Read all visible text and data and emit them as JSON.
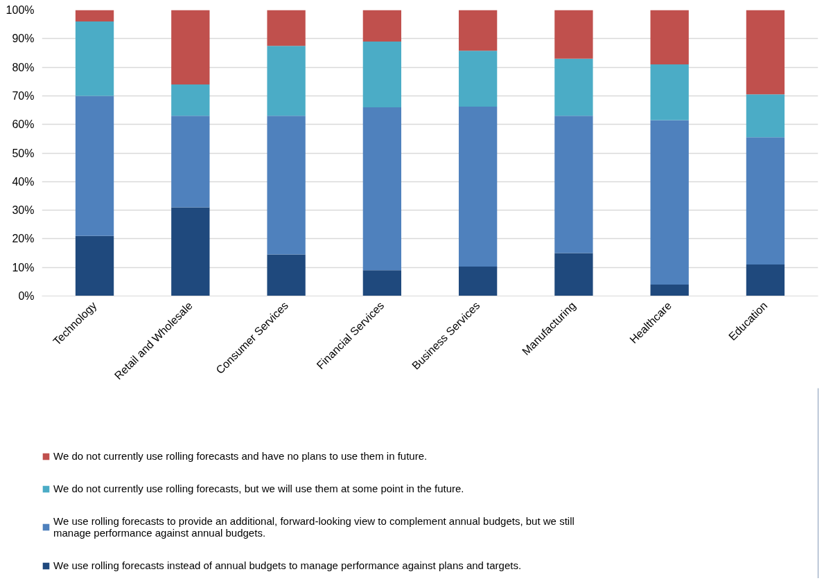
{
  "chart_data": {
    "type": "bar",
    "stacked": true,
    "categories": [
      "Technology",
      "Retail and Wholesale",
      "Consumer Services",
      "Financial Services",
      "Business Services",
      "Manufacturing",
      "Healthcare",
      "Education"
    ],
    "series": [
      {
        "name": "We use rolling forecasts instead of annual budgets to manage performance against plans and targets.",
        "color": "#1f497d",
        "values": [
          21,
          31,
          14.5,
          9,
          10.3,
          15,
          4,
          11
        ]
      },
      {
        "name": "We use rolling forecasts to provide an additional, forward-looking view to complement annual budgets, but we still manage performance against annual budgets.",
        "color": "#4f81bd",
        "values": [
          49,
          32,
          48.5,
          57,
          55.9,
          48,
          57.5,
          44.5
        ]
      },
      {
        "name": "We do not currently use rolling forecasts, but we will use them at some point in the future.",
        "color": "#4bacc6",
        "values": [
          26,
          11,
          24.5,
          23,
          19.6,
          20,
          19.5,
          15
        ]
      },
      {
        "name": "We do not currently use rolling forecasts and have no plans to use them in future.",
        "color": "#c0504d",
        "values": [
          4,
          26,
          12.5,
          11,
          14.2,
          17,
          19,
          29.5
        ]
      }
    ],
    "ylim": [
      0,
      100
    ],
    "yticks": [
      {
        "value": 0,
        "label": "0%"
      },
      {
        "value": 10,
        "label": "10%"
      },
      {
        "value": 20,
        "label": "20%"
      },
      {
        "value": 30,
        "label": "30%"
      },
      {
        "value": 40,
        "label": "40%"
      },
      {
        "value": 50,
        "label": "50%"
      },
      {
        "value": 60,
        "label": "60%"
      },
      {
        "value": 70,
        "label": "70%"
      },
      {
        "value": 80,
        "label": "80%"
      },
      {
        "value": 90,
        "label": "90%"
      },
      {
        "value": 100,
        "label": "100%"
      }
    ],
    "grid": "y",
    "legend": "bottom"
  }
}
